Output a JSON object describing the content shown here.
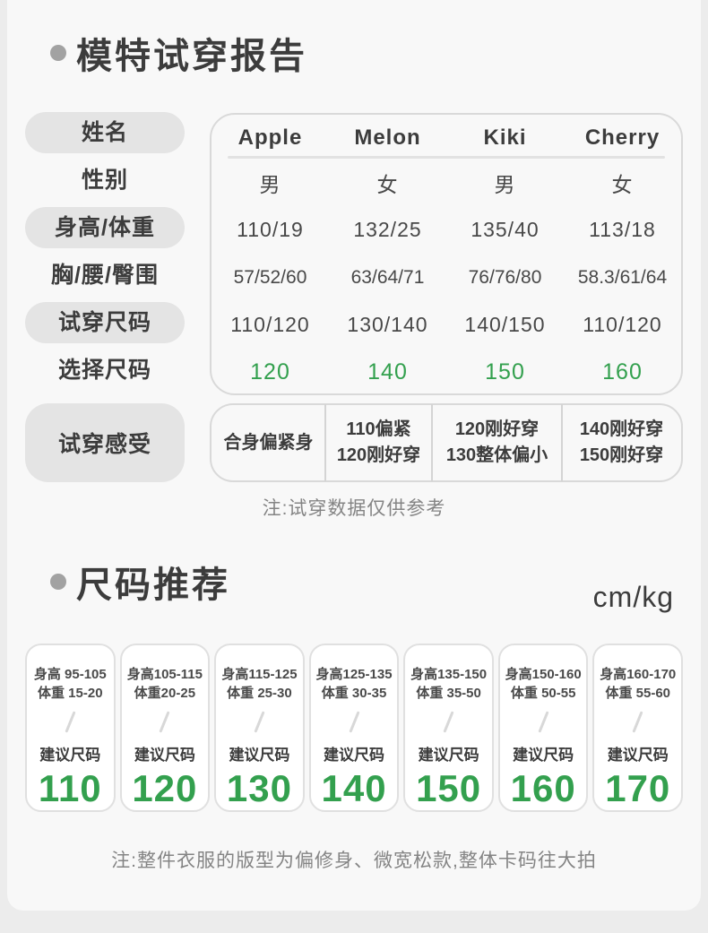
{
  "colors": {
    "accent_green": "#33a04e",
    "card_bg": "#f8f8f8",
    "outer_bg": "#ececec",
    "pill_bg": "#e4e4e4"
  },
  "fit_report": {
    "title": "模特试穿报告",
    "row_labels": [
      "姓名",
      "性别",
      "身高/体重",
      "胸/腰/臀围",
      "试穿尺码",
      "选择尺码"
    ],
    "feel_label": "试穿感受",
    "models": [
      "Apple",
      "Melon",
      "Kiki",
      "Cherry"
    ],
    "gender": [
      "男",
      "女",
      "男",
      "女"
    ],
    "height_weight": [
      "110/19",
      "132/25",
      "135/40",
      "113/18"
    ],
    "chest_waist_hip": [
      "57/52/60",
      "63/64/71",
      "76/76/80",
      "58.3/61/64"
    ],
    "tried_sizes": [
      "110/120",
      "130/140",
      "140/150",
      "110/120"
    ],
    "chosen_sizes": [
      "120",
      "140",
      "150",
      "160"
    ],
    "feelings": [
      {
        "lines": [
          "合身偏紧身"
        ]
      },
      {
        "lines": [
          "110偏紧",
          "120刚好穿"
        ]
      },
      {
        "lines": [
          "120刚好穿",
          "130整体偏小"
        ]
      },
      {
        "lines": [
          "140刚好穿",
          "150刚好穿"
        ]
      }
    ],
    "note": "注:试穿数据仅供参考"
  },
  "size_recommendation": {
    "title": "尺码推荐",
    "unit": "cm/kg",
    "suggest_label": "建议尺码",
    "cards": [
      {
        "height": "身高 95-105",
        "weight": "体重 15-20",
        "size": "110"
      },
      {
        "height": "身高105-115",
        "weight": "体重20-25",
        "size": "120"
      },
      {
        "height": "身高115-125",
        "weight": "体重 25-30",
        "size": "130"
      },
      {
        "height": "身高125-135",
        "weight": "体重 30-35",
        "size": "140"
      },
      {
        "height": "身高135-150",
        "weight": "体重 35-50",
        "size": "150"
      },
      {
        "height": "身高150-160",
        "weight": "体重 50-55",
        "size": "160"
      },
      {
        "height": "身高160-170",
        "weight": "体重 55-60",
        "size": "170"
      }
    ],
    "note": "注:整件衣服的版型为偏修身、微宽松款,整体卡码往大拍"
  }
}
